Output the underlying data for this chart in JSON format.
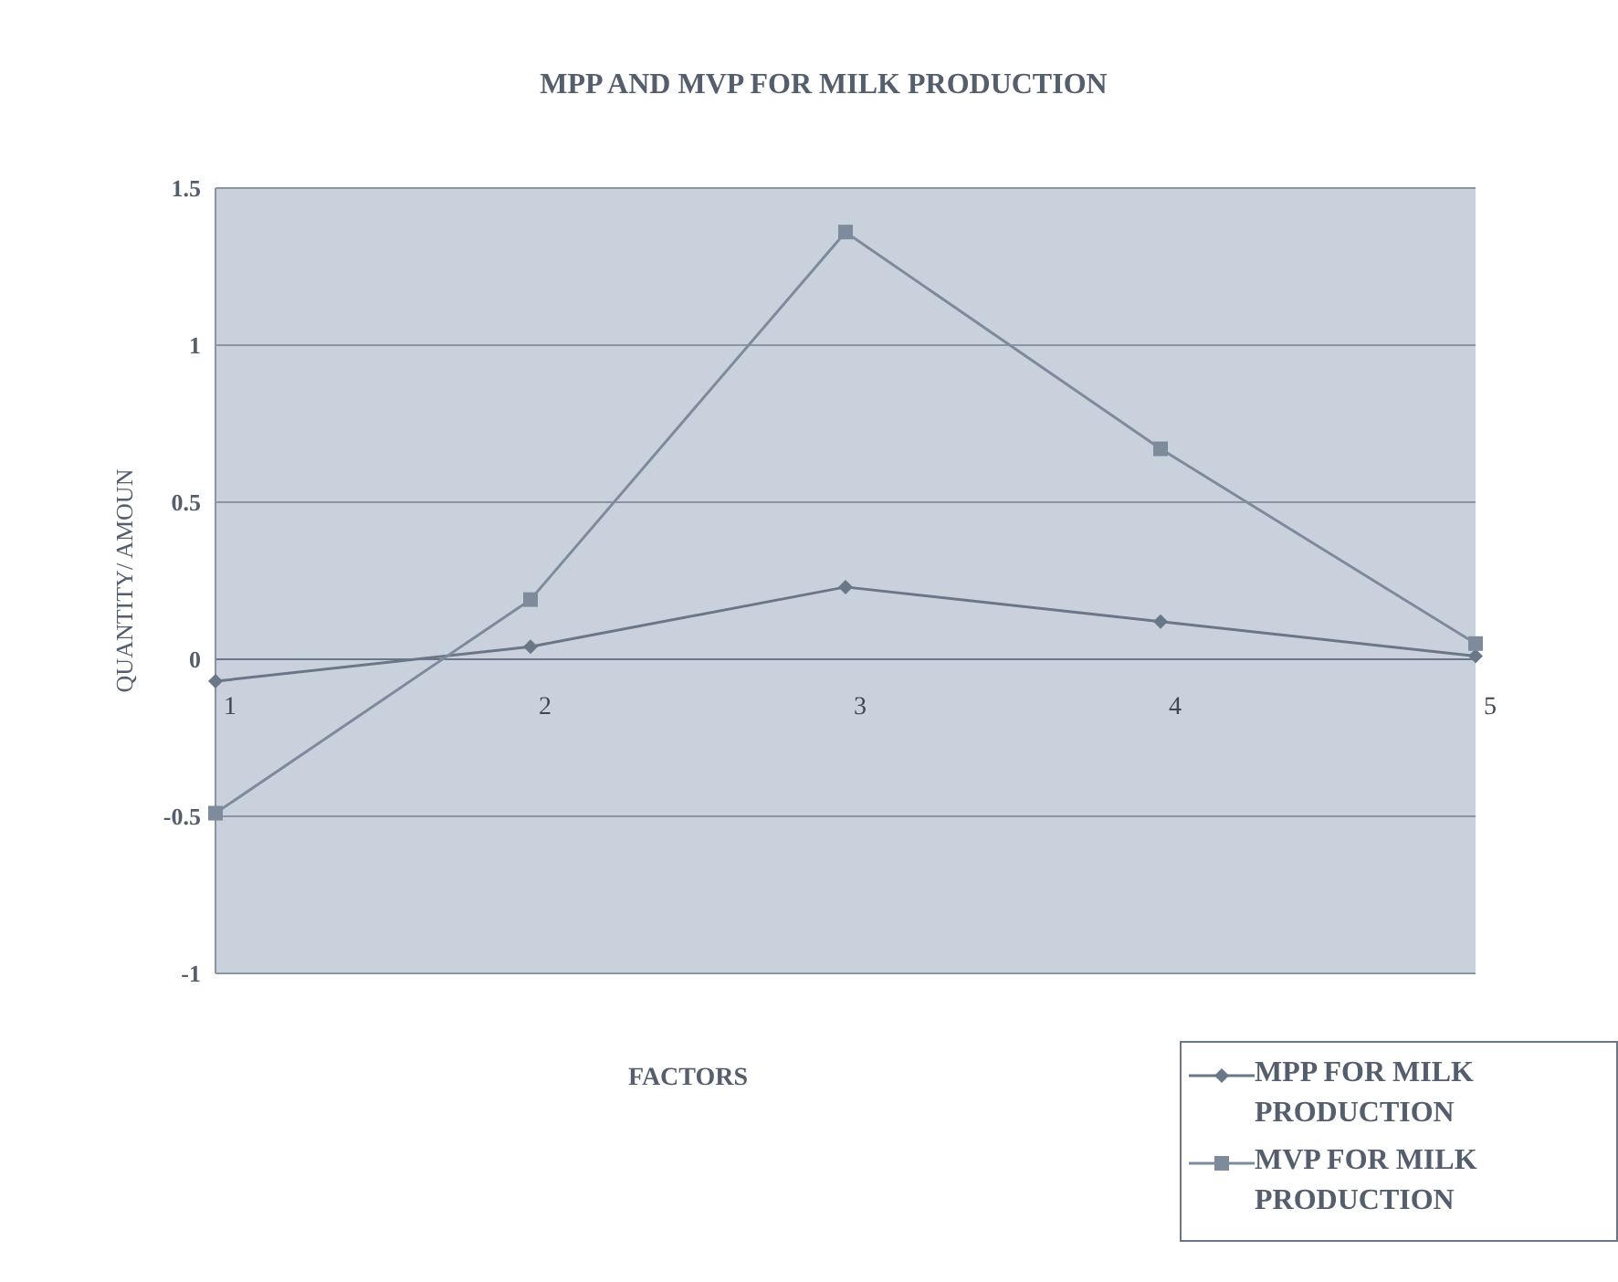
{
  "chart_data": {
    "type": "line",
    "title": "MPP AND MVP FOR MILK PRODUCTION",
    "xlabel": "FACTORS",
    "ylabel": "QUANTITY/ AMOUN",
    "categories": [
      "1",
      "2",
      "3",
      "4",
      "5"
    ],
    "series": [
      {
        "name": "MPP FOR MILK PRODUCTION",
        "color": "#6a7788",
        "marker": "diamond",
        "values": [
          -0.07,
          0.04,
          0.23,
          0.12,
          0.01
        ]
      },
      {
        "name": "MVP FOR MILK PRODUCTION",
        "color": "#7d8b9c",
        "marker": "square",
        "values": [
          -0.49,
          0.19,
          1.36,
          0.67,
          0.05
        ]
      }
    ],
    "ylim": [
      -1,
      1.5
    ],
    "yticks": [
      -1,
      -0.5,
      0,
      0.5,
      1,
      1.5
    ],
    "grid": "y",
    "legend": "bottom right"
  }
}
